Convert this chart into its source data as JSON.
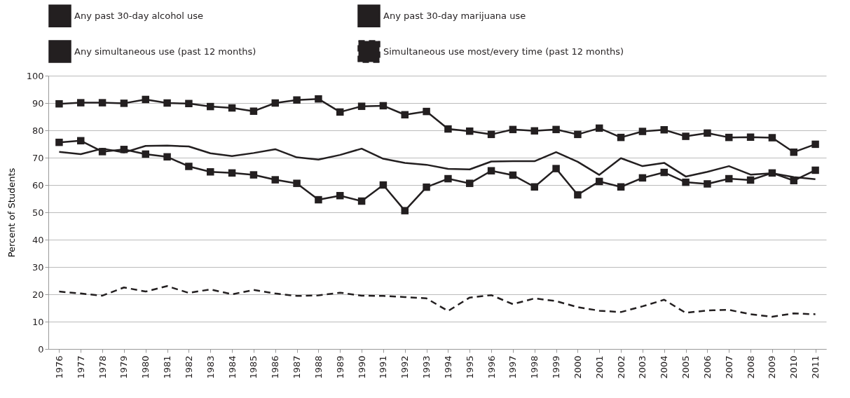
{
  "chart_data": {
    "type": "line",
    "ylabel": "Percent of Students",
    "categories": [
      "1976",
      "1977",
      "1978",
      "1979",
      "1980",
      "1981",
      "1982",
      "1983",
      "1984",
      "1985",
      "1986",
      "1987",
      "1988",
      "1989",
      "1990",
      "1991",
      "1992",
      "1993",
      "1994",
      "1995",
      "1996",
      "1997",
      "1998",
      "1999",
      "2000",
      "2001",
      "2002",
      "2003",
      "2004",
      "2005",
      "2006",
      "2007",
      "2008",
      "2009",
      "2010",
      "2011"
    ],
    "ylim": [
      0,
      100
    ],
    "yticks": [
      0,
      10,
      20,
      30,
      40,
      50,
      60,
      70,
      80,
      90,
      100
    ],
    "grid": "y",
    "legend": "top",
    "series": [
      {
        "name": "Any past 30-day alcohol use",
        "color": "#231f20",
        "marker": "square",
        "line_style": "solid",
        "values": [
          89.7,
          90.1,
          90.1,
          89.9,
          91.3,
          90.0,
          89.8,
          88.7,
          88.2,
          87.0,
          90.0,
          91.1,
          91.5,
          86.7,
          88.8,
          89.0,
          85.7,
          86.9,
          80.5,
          79.7,
          78.5,
          80.3,
          79.8,
          80.3,
          78.5,
          80.8,
          77.4,
          79.6,
          80.2,
          77.8,
          79.0,
          77.4,
          77.5,
          77.3,
          72.0,
          74.9
        ]
      },
      {
        "name": "Any past 30-day marijuana use",
        "color": "#231f20",
        "marker": "square",
        "line_style": "solid",
        "values": [
          75.6,
          76.2,
          72.2,
          73.0,
          71.3,
          70.3,
          66.8,
          64.8,
          64.4,
          63.7,
          61.9,
          60.6,
          54.6,
          56.1,
          54.1,
          60.0,
          50.6,
          59.2,
          62.3,
          60.6,
          65.2,
          63.6,
          59.3,
          66.0,
          56.4,
          61.3,
          59.3,
          62.6,
          64.6,
          61.0,
          60.4,
          62.3,
          61.8,
          64.4,
          61.6,
          65.4
        ]
      },
      {
        "name": "Any simultaneous use (past 12 months)",
        "color": "#231f20",
        "marker": "none",
        "line_style": "solid",
        "values": [
          72.1,
          71.3,
          73.3,
          71.9,
          74.3,
          74.4,
          74.1,
          71.6,
          70.6,
          71.7,
          73.1,
          70.1,
          69.3,
          71.0,
          73.3,
          69.6,
          68.1,
          67.4,
          65.9,
          65.7,
          68.6,
          68.7,
          68.7,
          72.0,
          68.5,
          63.7,
          69.8,
          66.9,
          68.1,
          63.1,
          64.8,
          66.9,
          63.8,
          64.3,
          62.9,
          62.1
        ]
      },
      {
        "name": "Simultaneous use most/every time (past 12 months)",
        "color": "#231f20",
        "marker": "none",
        "line_style": "dashed",
        "values": [
          21.0,
          20.3,
          19.5,
          22.5,
          21.0,
          23.0,
          20.5,
          21.8,
          20.0,
          21.6,
          20.3,
          19.4,
          19.6,
          20.6,
          19.5,
          19.4,
          19.0,
          18.5,
          13.9,
          18.8,
          19.7,
          16.4,
          18.5,
          17.5,
          15.3,
          14.0,
          13.5,
          15.6,
          18.0,
          13.2,
          14.1,
          14.3,
          12.7,
          11.8,
          13.0,
          12.7
        ]
      }
    ]
  }
}
